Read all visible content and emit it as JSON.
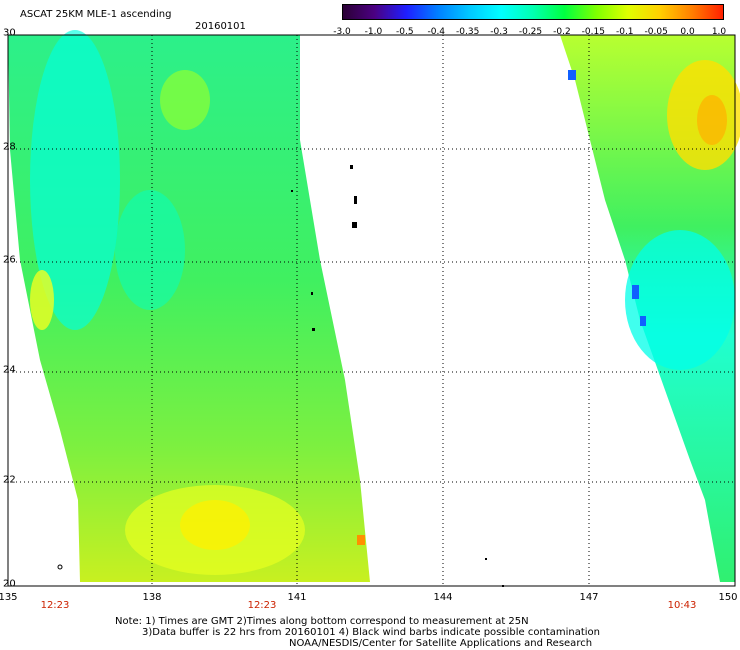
{
  "header": {
    "title": "ASCAT 25KM MLE-1 ascending",
    "date": "20160101"
  },
  "colorbar": {
    "labels": [
      "-3.0",
      "-1.0",
      "-0.5",
      "-0.4",
      "-0.35",
      "-0.3",
      "-0.25",
      "-0.2",
      "-0.15",
      "-0.1",
      "-0.05",
      "0.0",
      "1.0"
    ],
    "colors": [
      "#2b0035",
      "#4b0082",
      "#1f1fff",
      "#0080ff",
      "#00c8ff",
      "#00ffff",
      "#00ffb0",
      "#00ff40",
      "#7fff00",
      "#e0ff00",
      "#ffd000",
      "#ff8000",
      "#ff2000"
    ]
  },
  "map": {
    "lon_labels": [
      "135",
      "138",
      "141",
      "144",
      "147",
      "150"
    ],
    "lat_labels": [
      "30",
      "28",
      "26",
      "24",
      "22",
      "20"
    ],
    "time_labels": [
      "12:23",
      "12:23",
      "10:43"
    ],
    "lon_range": [
      135,
      150
    ],
    "lat_range": [
      20,
      30
    ],
    "swath_colors": {
      "cyan": "#00ffff",
      "aqua": "#00ffb0",
      "green": "#22ff44",
      "yellowgreen": "#aaff22",
      "yellow": "#ffff00",
      "orange": "#ff8c00",
      "blue": "#1060ff"
    }
  },
  "notes": {
    "line1": "Note: 1) Times are GMT 2)Times along bottom correspond to measurement at 25N",
    "line2": "3)Data buffer is 22 hrs from 20160101 4) Black wind barbs indicate possible contamination",
    "line3": "NOAA/NESDIS/Center for Satellite Applications and Research"
  }
}
